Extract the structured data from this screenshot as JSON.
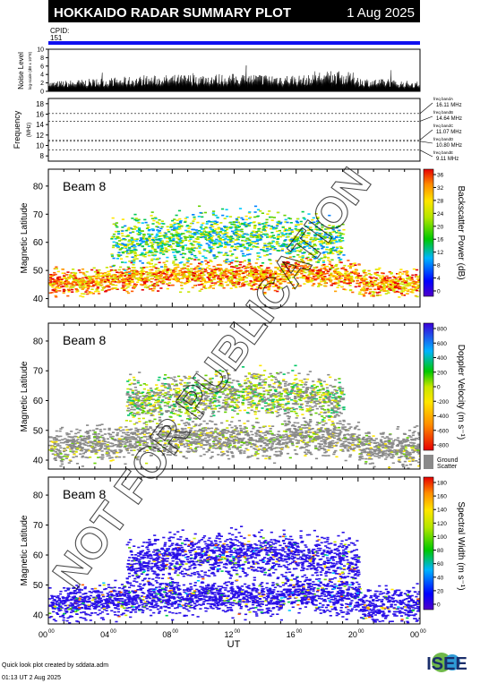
{
  "header": {
    "title": "HOKKAIDO RADAR SUMMARY PLOT",
    "date": "1 Aug 2025",
    "cpid_label": "CPID:",
    "cpid_value": "151"
  },
  "colors": {
    "cpid_bar": "#1010f0",
    "header_bg": "#000000",
    "header_text": "#ffffff",
    "ground_scatter": "#8a8a8a"
  },
  "noise_panel": {
    "ylabel": "Noise Level",
    "ylabel_sub": "log-scale (dB x 10^8)",
    "yticks": [
      "10",
      "8",
      "6",
      "4",
      "2",
      "0"
    ],
    "ylim": [
      0,
      10
    ]
  },
  "frequency_panel": {
    "ylabel": "Frequency",
    "ylabel_sub": "(MHz)",
    "yticks": [
      "18",
      "16",
      "14",
      "12",
      "10",
      "8"
    ],
    "ylim": [
      7,
      19
    ],
    "bands": [
      {
        "label": "freq bandA",
        "value": "16.11 MHz",
        "mhz": 16.11
      },
      {
        "label": "freq bandB",
        "value": "14.64 MHz",
        "mhz": 14.64
      },
      {
        "label": "freq bandC",
        "value": "11.07 MHz",
        "mhz": 11.07
      },
      {
        "label": "freq bandD",
        "value": "10.80 MHz",
        "mhz": 10.8
      },
      {
        "label": "freq bandE",
        "value": "9.11 MHz",
        "mhz": 9.11
      }
    ]
  },
  "chart_data": [
    {
      "type": "heatmap",
      "beam_label": "Beam  8",
      "ylabel": "Magnetic Latitude",
      "yticks": [
        "80",
        "70",
        "60",
        "50",
        "40"
      ],
      "ylim": [
        37,
        86
      ],
      "xlim": [
        0,
        24
      ],
      "colorbar": {
        "label": "Backscatter Power (dB)",
        "ticks": [
          "36",
          "32",
          "28",
          "24",
          "20",
          "16",
          "12",
          "8",
          "4",
          "0"
        ],
        "range": [
          0,
          38
        ]
      },
      "echo_bands": [
        {
          "name": "main",
          "lat_center": 47,
          "lat_width": 5,
          "t_start": 0,
          "t_end": 24
        },
        {
          "name": "upper",
          "lat_center": 60,
          "lat_width": 9,
          "t_start": 4,
          "t_end": 19
        }
      ]
    },
    {
      "type": "heatmap",
      "beam_label": "Beam  8",
      "ylabel": "Magnetic Latitude",
      "yticks": [
        "80",
        "70",
        "60",
        "50",
        "40"
      ],
      "ylim": [
        37,
        86
      ],
      "xlim": [
        0,
        24
      ],
      "colorbar": {
        "label": "Doppler Velocity (m s⁻¹)",
        "ticks": [
          "800",
          "600",
          "400",
          "200",
          "0",
          "-200",
          "-400",
          "-600",
          "-800"
        ],
        "range": [
          -900,
          900
        ],
        "ground_scatter_label": "Ground",
        "ground_scatter_label2": "Scatter"
      },
      "echo_bands": [
        {
          "name": "ground",
          "lat_center": 46,
          "lat_width": 6,
          "t_start": 0,
          "t_end": 24
        },
        {
          "name": "upper",
          "lat_center": 60,
          "lat_width": 8,
          "t_start": 5,
          "t_end": 19
        }
      ]
    },
    {
      "type": "heatmap",
      "beam_label": "Beam  8",
      "ylabel": "Magnetic Latitude",
      "yticks": [
        "80",
        "70",
        "60",
        "50",
        "40"
      ],
      "ylim": [
        37,
        86
      ],
      "xlim": [
        0,
        24
      ],
      "colorbar": {
        "label": "Spectral Width (m s⁻¹)",
        "ticks": [
          "180",
          "160",
          "140",
          "120",
          "100",
          "80",
          "60",
          "40",
          "20",
          "0"
        ],
        "range": [
          0,
          190
        ]
      },
      "echo_bands": [
        {
          "name": "main",
          "lat_center": 45,
          "lat_width": 6,
          "t_start": 0,
          "t_end": 24
        },
        {
          "name": "upper",
          "lat_center": 58,
          "lat_width": 8,
          "t_start": 5,
          "t_end": 20
        }
      ]
    }
  ],
  "x_axis": {
    "ticks": [
      {
        "hh": "00",
        "mm": "00"
      },
      {
        "hh": "04",
        "mm": "00"
      },
      {
        "hh": "08",
        "mm": "00"
      },
      {
        "hh": "12",
        "mm": "00"
      },
      {
        "hh": "16",
        "mm": "00"
      },
      {
        "hh": "20",
        "mm": "00"
      },
      {
        "hh": "00",
        "mm": "00"
      }
    ],
    "label": "UT"
  },
  "footer": {
    "line1": "Quick look plot created by sddata.adm",
    "line2": "01:13 UT  2 Aug 2025",
    "logo_text": "ISEE"
  },
  "watermark": "NOT FOR PUBLICATION"
}
